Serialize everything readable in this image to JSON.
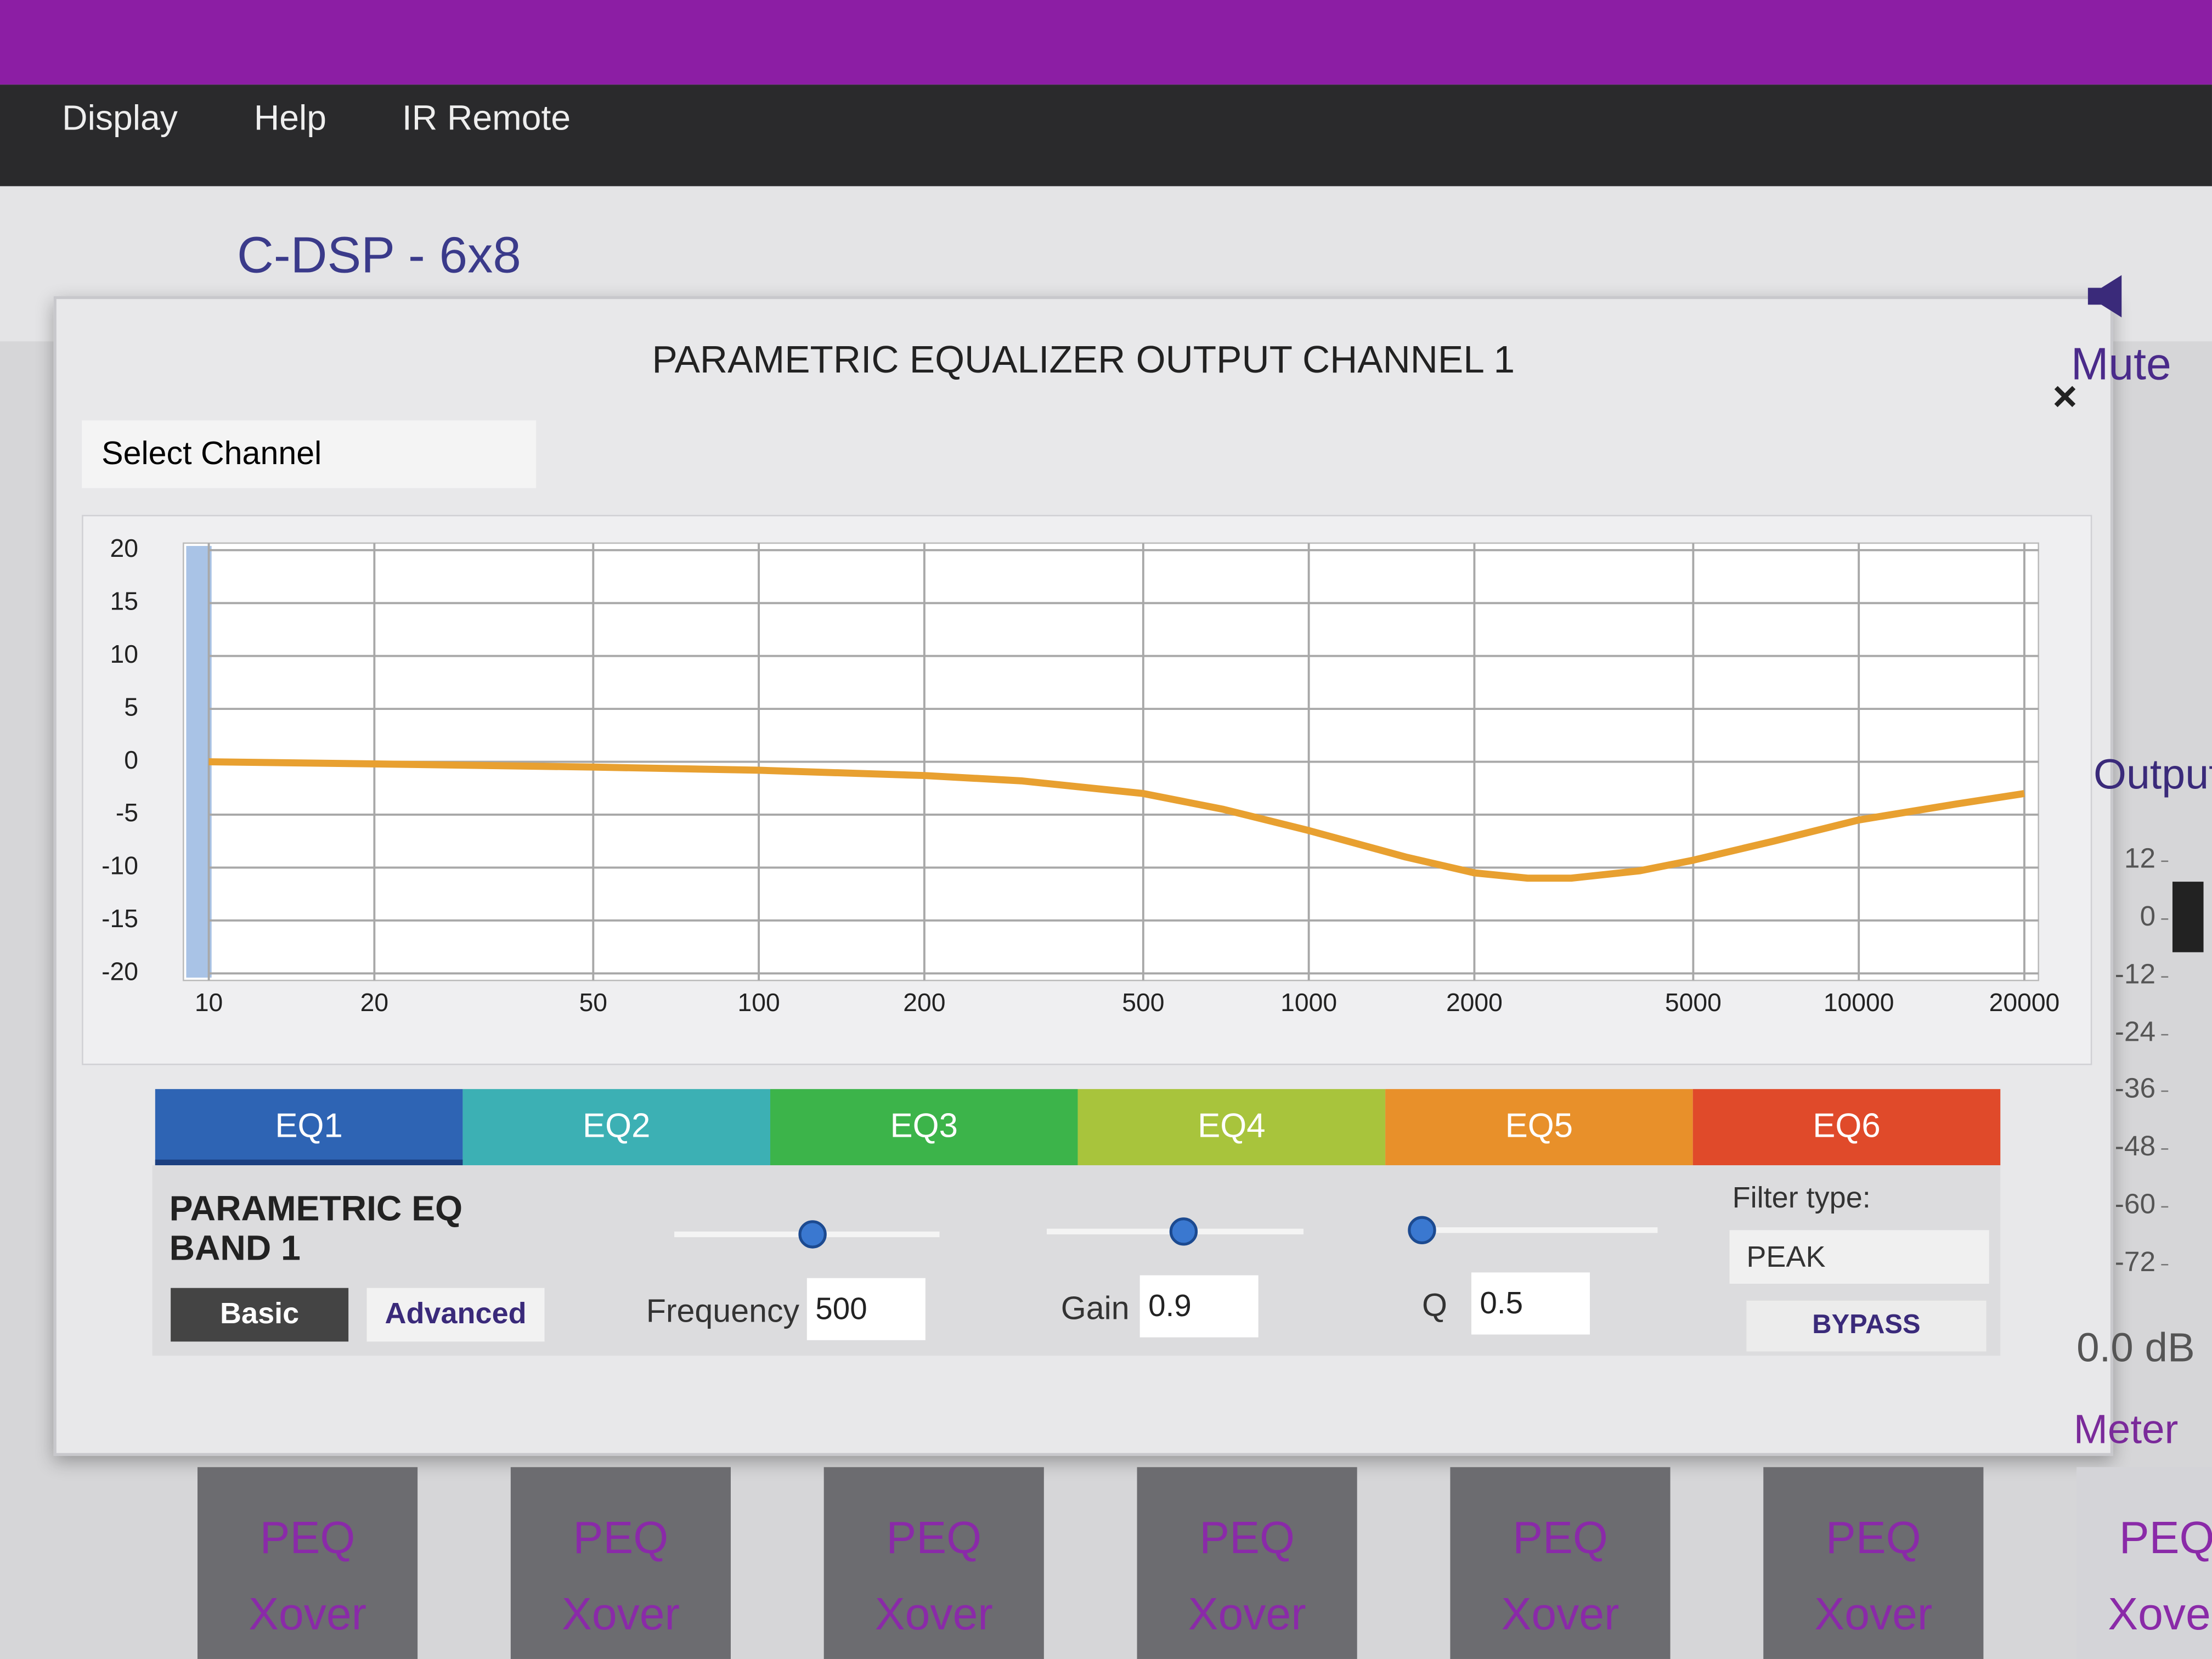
{
  "menu": [
    "Display",
    "Help",
    "IR Remote"
  ],
  "app_title": "C-DSP - 6x8",
  "mute": "Mute",
  "dialog": {
    "title": "PARAMETRIC EQUALIZER OUTPUT CHANNEL 1",
    "close": "×",
    "select_channel": "Select Channel",
    "tabs": [
      {
        "label": "EQ1",
        "color": "#2e64b4"
      },
      {
        "label": "EQ2",
        "color": "#3cb0b4"
      },
      {
        "label": "EQ3",
        "color": "#3cb44a"
      },
      {
        "label": "EQ4",
        "color": "#a8c43c"
      },
      {
        "label": "EQ5",
        "color": "#e8902a"
      },
      {
        "label": "EQ6",
        "color": "#e04a2a"
      }
    ],
    "band_title": [
      "PARAMETRIC EQ",
      "BAND 1"
    ],
    "modes": [
      "Basic",
      "Advanced"
    ],
    "fields": [
      {
        "label": "Frequency",
        "value": "500"
      },
      {
        "label": "Gain",
        "value": "0.9"
      },
      {
        "label": "Q",
        "value": "0.5"
      }
    ],
    "filter_type_label": "Filter type:",
    "filter_type": "PEAK",
    "bypass": "BYPASS"
  },
  "chart_data": {
    "type": "line",
    "x": [
      10,
      20,
      50,
      100,
      200,
      300,
      500,
      700,
      1000,
      1500,
      2000,
      2500,
      3000,
      4000,
      5000,
      7000,
      10000,
      15000,
      20000
    ],
    "series": [
      {
        "color": "#e8a030",
        "values": [
          0,
          -0.2,
          -0.5,
          -0.8,
          -1.3,
          -1.8,
          -3,
          -4.5,
          -6.5,
          -9,
          -10.5,
          -11,
          -11,
          -10.3,
          -9.3,
          -7.5,
          -5.5,
          -4,
          -3
        ]
      }
    ],
    "xlim": [
      10,
      20000
    ],
    "ylim": [
      -20,
      20
    ],
    "log_x": true,
    "grid": true,
    "xticks": [
      10,
      20,
      50,
      100,
      200,
      500,
      1000,
      2000,
      5000,
      10000,
      20000
    ],
    "yticks": [
      20,
      15,
      10,
      5,
      0,
      -5,
      -10,
      -15,
      -20
    ]
  },
  "side": {
    "output": "Output",
    "meter_ticks": [
      12,
      0,
      -12,
      -24,
      -36,
      -48,
      -60,
      -72
    ],
    "level": "0.0 dB",
    "meter": "Meter"
  },
  "channels": [
    [
      "PEQ",
      "Xover"
    ],
    [
      "PEQ",
      "Xover"
    ],
    [
      "PEQ",
      "Xover"
    ],
    [
      "PEQ",
      "Xover"
    ],
    [
      "PEQ",
      "Xover"
    ],
    [
      "PEQ",
      "Xover"
    ],
    [
      "PEQ",
      "Xover"
    ]
  ]
}
